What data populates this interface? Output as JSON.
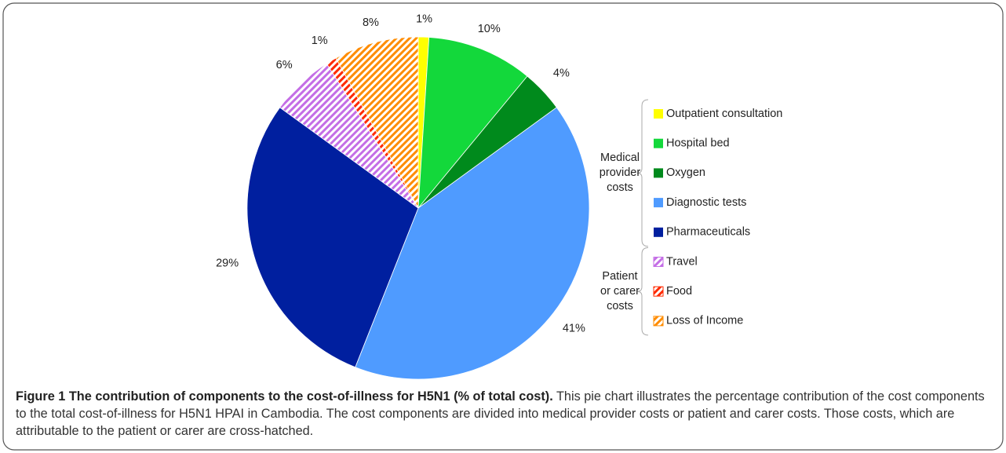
{
  "chart_data": {
    "type": "pie",
    "categories": [
      "Outpatient consultation",
      "Hospital bed",
      "Oxygen",
      "Diagnostic tests",
      "Pharmaceuticals",
      "Travel",
      "Food",
      "Loss of Income"
    ],
    "values": [
      1,
      10,
      4,
      41,
      29,
      6,
      1,
      8
    ],
    "value_labels": [
      "1%",
      "10%",
      "4%",
      "41%",
      "29%",
      "6%",
      "1%",
      "8%"
    ],
    "colors": [
      "#ffff00",
      "#13d83b",
      "#008a1c",
      "#4f9bff",
      "#001f9f",
      "#c46ee6",
      "#ff2a00",
      "#ff8c00"
    ],
    "hatched": [
      false,
      false,
      false,
      false,
      false,
      true,
      true,
      true
    ],
    "legend_groups": [
      {
        "label": [
          "Medical",
          "provider",
          "costs"
        ],
        "first": 0,
        "last": 4
      },
      {
        "label": [
          "Patient",
          "or carer",
          "costs"
        ],
        "first": 5,
        "last": 7
      }
    ]
  },
  "caption": {
    "title": "Figure 1 The contribution of components to the cost-of-illness for H5N1 (% of total cost).",
    "text": "This pie chart illustrates the percentage contribution of the cost components to the total cost-of-illness for H5N1 HPAI in Cambodia. The cost components are divided into medical provider costs or patient and carer costs. Those costs, which are attributable to the patient or carer are cross-hatched."
  }
}
